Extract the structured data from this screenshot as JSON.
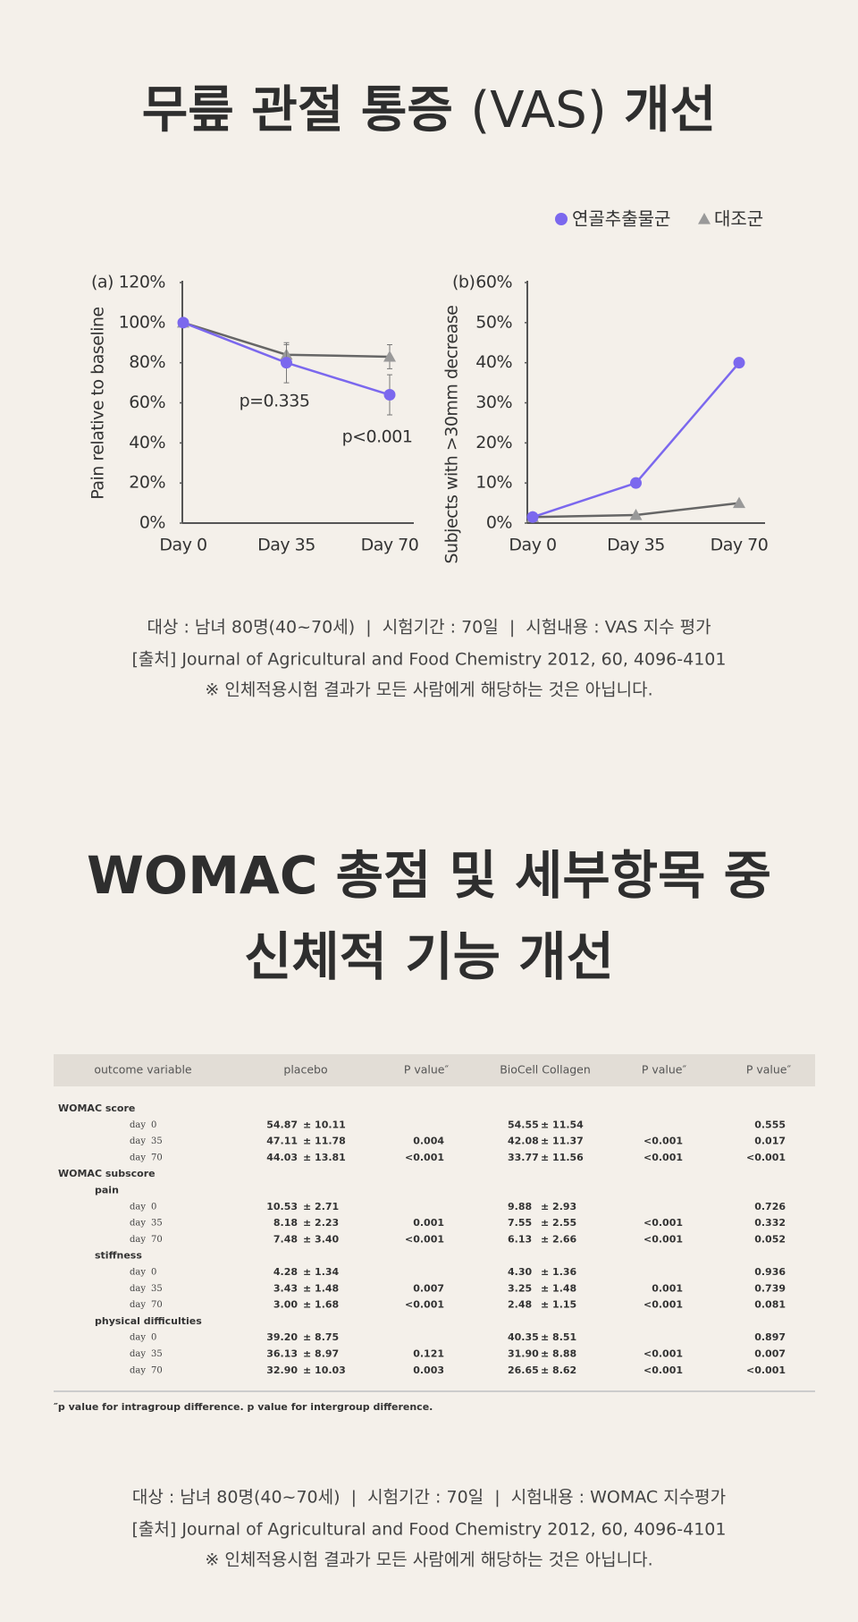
{
  "heading1": {
    "parts": [
      "무릎 관절 통증",
      "(VAS)",
      "개선"
    ]
  },
  "chart_data": [
    {
      "type": "line",
      "panel": "(a)",
      "y_label": "Pain relative to baseline",
      "categories": [
        "Day 0",
        "Day 35",
        "Day 70"
      ],
      "ylim": [
        0,
        120
      ],
      "yticks": [
        {
          "value": 0,
          "label": "0%"
        },
        {
          "value": 20,
          "label": "20%"
        },
        {
          "value": 40,
          "label": "40%"
        },
        {
          "value": 60,
          "label": "60%"
        },
        {
          "value": 80,
          "label": "80%"
        },
        {
          "value": 100,
          "label": "100%"
        },
        {
          "value": 120,
          "label": "120%"
        }
      ],
      "series": [
        {
          "name": "연골추출물군",
          "color": "#7b68ee",
          "marker": "circle",
          "values": [
            100,
            80,
            64
          ],
          "errors": [
            null,
            10,
            10
          ]
        },
        {
          "name": "대조군",
          "color": "#999999",
          "marker": "triangle",
          "values": [
            100,
            84,
            83
          ],
          "errors": [
            null,
            5,
            6
          ]
        }
      ],
      "annotations": [
        "p=0.335",
        "p<0.001"
      ]
    },
    {
      "type": "line",
      "panel": "(b)",
      "y_label": "Subjects with >30mm decrease",
      "categories": [
        "Day 0",
        "Day 35",
        "Day 70"
      ],
      "ylim": [
        0,
        60
      ],
      "yticks": [
        {
          "value": 0,
          "label": "0%"
        },
        {
          "value": 10,
          "label": "10%"
        },
        {
          "value": 20,
          "label": "20%"
        },
        {
          "value": 30,
          "label": "30%"
        },
        {
          "value": 40,
          "label": "40%"
        },
        {
          "value": 50,
          "label": "50%"
        },
        {
          "value": 60,
          "label": "60%"
        }
      ],
      "series": [
        {
          "name": "연골추출물군",
          "color": "#7b68ee",
          "marker": "circle",
          "values": [
            1.5,
            10,
            40
          ]
        },
        {
          "name": "대조군",
          "color": "#999999",
          "marker": "triangle",
          "values": [
            1.5,
            2,
            5
          ]
        }
      ]
    }
  ],
  "caption1": [
    "대상 : 남녀 80명(40~70세)  |  시험기간 : 70일  |  시험내용 : VAS 지수 평가",
    "[출처] Journal of Agricultural and Food Chemistry 2012, 60, 4096-4101",
    "※ 인체적용시험 결과가 모든 사람에게 해당하는 것은 아닙니다."
  ],
  "heading2": [
    "WOMAC 총점 및 세부항목 중",
    "신체적 기능 개선"
  ],
  "table": {
    "header": [
      "outcome variable",
      "placebo",
      "P value″",
      "BioCell Collagen",
      "P value″",
      "P value″"
    ],
    "groups": [
      {
        "title": "WOMAC score",
        "rows": [
          {
            "day": [
              "day",
              "0"
            ],
            "placebo": [
              "54.87",
              "± 10.11"
            ],
            "biocell": [
              "54.55",
              "± 11.54"
            ],
            "p_between": "0.555"
          },
          {
            "day": [
              "day",
              "35"
            ],
            "placebo": [
              "47.11",
              "± 11.78"
            ],
            "p_placebo": "0.004",
            "biocell": [
              "42.08",
              "± 11.37"
            ],
            "p_biocell": "<0.001",
            "p_between": "0.017"
          },
          {
            "day": [
              "day",
              "70"
            ],
            "placebo": [
              "44.03",
              "± 13.81"
            ],
            "p_placebo": "<0.001",
            "biocell": [
              "33.77",
              "± 11.56"
            ],
            "p_biocell": "<0.001",
            "p_between": "<0.001"
          }
        ]
      },
      {
        "title": "WOMAC subscore",
        "subgroups": [
          {
            "title": "pain",
            "rows": [
              {
                "day": [
                  "day",
                  "0"
                ],
                "placebo": [
                  "10.53",
                  "± 2.71"
                ],
                "biocell": [
                  "9.88",
                  "± 2.93"
                ],
                "p_between": "0.726"
              },
              {
                "day": [
                  "day",
                  "35"
                ],
                "placebo": [
                  "8.18",
                  "± 2.23"
                ],
                "p_placebo": "0.001",
                "biocell": [
                  "7.55",
                  "± 2.55"
                ],
                "p_biocell": "<0.001",
                "p_between": "0.332"
              },
              {
                "day": [
                  "day",
                  "70"
                ],
                "placebo": [
                  "7.48",
                  "± 3.40"
                ],
                "p_placebo": "<0.001",
                "biocell": [
                  "6.13",
                  "± 2.66"
                ],
                "p_biocell": "<0.001",
                "p_between": "0.052"
              }
            ]
          },
          {
            "title": "stiffness",
            "rows": [
              {
                "day": [
                  "day",
                  "0"
                ],
                "placebo": [
                  "4.28",
                  "± 1.34"
                ],
                "biocell": [
                  "4.30",
                  "± 1.36"
                ],
                "p_between": "0.936"
              },
              {
                "day": [
                  "day",
                  "35"
                ],
                "placebo": [
                  "3.43",
                  "± 1.48"
                ],
                "p_placebo": "0.007",
                "biocell": [
                  "3.25",
                  "± 1.48"
                ],
                "p_biocell": "0.001",
                "p_between": "0.739"
              },
              {
                "day": [
                  "day",
                  "70"
                ],
                "placebo": [
                  "3.00",
                  "± 1.68"
                ],
                "p_placebo": "<0.001",
                "biocell": [
                  "2.48",
                  "± 1.15"
                ],
                "p_biocell": "<0.001",
                "p_between": "0.081"
              }
            ]
          },
          {
            "title": "physical difficulties",
            "rows": [
              {
                "day": [
                  "day",
                  "0"
                ],
                "placebo": [
                  "39.20",
                  "± 8.75"
                ],
                "biocell": [
                  "40.35",
                  "± 8.51"
                ],
                "p_between": "0.897"
              },
              {
                "day": [
                  "day",
                  "35"
                ],
                "placebo": [
                  "36.13",
                  "± 8.97"
                ],
                "p_placebo": "0.121",
                "biocell": [
                  "31.90",
                  "± 8.88"
                ],
                "p_biocell": "<0.001",
                "p_between": "0.007"
              },
              {
                "day": [
                  "day",
                  "70"
                ],
                "placebo": [
                  "32.90",
                  "± 10.03"
                ],
                "p_placebo": "0.003",
                "biocell": [
                  "26.65",
                  "± 8.62"
                ],
                "p_biocell": "<0.001",
                "p_between": "<0.001"
              }
            ]
          }
        ]
      }
    ],
    "footnote": "″p value for intragroup difference. p value for intergroup difference."
  },
  "caption2": [
    "대상 : 남녀 80명(40~70세)  |  시험기간 : 70일  |  시험내용 : WOMAC 지수평가",
    "[출처] Journal of Agricultural and Food Chemistry 2012, 60, 4096-4101",
    "※ 인체적용시험 결과가 모든 사람에게 해당하는 것은 아닙니다."
  ]
}
